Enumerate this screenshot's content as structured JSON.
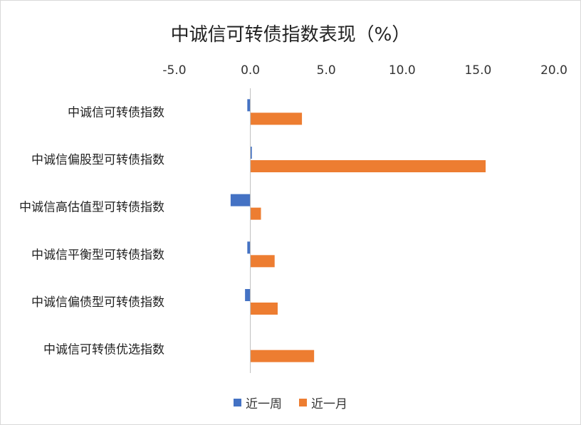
{
  "chart_data": {
    "type": "bar",
    "orientation": "horizontal",
    "title": "中诚信可转债指数表现（%）",
    "categories": [
      "中诚信可转债指数",
      "中诚信偏股型可转债指数",
      "中诚信高估值型可转债指数",
      "中诚信平衡型可转债指数",
      "中诚信偏债型可转债指数",
      "中诚信可转债优选指数"
    ],
    "series": [
      {
        "name": "近一周",
        "color": "#4472c4",
        "values": [
          -0.2,
          0.1,
          -1.3,
          -0.2,
          -0.35,
          0.0
        ]
      },
      {
        "name": "近一月",
        "color": "#ed7d31",
        "values": [
          3.4,
          15.5,
          0.7,
          1.6,
          1.8,
          4.2
        ]
      }
    ],
    "xlim": [
      -5.0,
      20.0
    ],
    "xticks": [
      "-5.0",
      "0.0",
      "5.0",
      "10.0",
      "15.0",
      "20.0"
    ],
    "xaxis_position": "top",
    "negative_tick_color": "#ff0000",
    "grid": false,
    "legend_position": "bottom"
  }
}
